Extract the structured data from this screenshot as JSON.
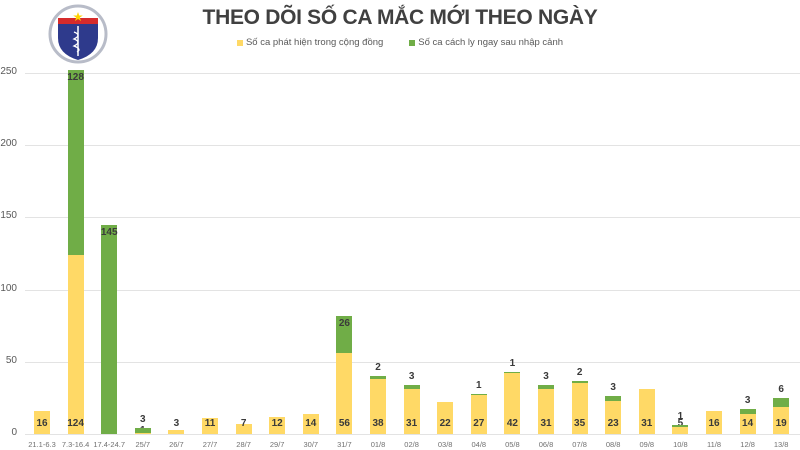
{
  "logo": {
    "top_text": "BỘ Y TẾ",
    "bottom_text": "MINISTRY OF HEALTH"
  },
  "chart_data": {
    "type": "bar",
    "stacked": true,
    "title": "THEO DÕI SỐ CA MẮC MỚI THEO NGÀY",
    "xlabel": "",
    "ylabel": "",
    "ylim": [
      0,
      250
    ],
    "yticks": [
      0,
      50,
      100,
      150,
      200,
      250
    ],
    "grid": true,
    "legend_position": "top",
    "categories": [
      "21.1-6.3",
      "7.3-16.4",
      "17.4-24.7",
      "25/7",
      "26/7",
      "27/7",
      "28/7",
      "29/7",
      "30/7",
      "31/7",
      "01/8",
      "02/8",
      "03/8",
      "04/8",
      "05/8",
      "06/8",
      "07/8",
      "08/8",
      "09/8",
      "10/8",
      "11/8",
      "12/8",
      "13/8"
    ],
    "series": [
      {
        "name": "Số ca phát hiện trong cộng đồng",
        "color": "#FFD966",
        "values": [
          16,
          124,
          0,
          1,
          3,
          11,
          7,
          12,
          14,
          56,
          38,
          31,
          22,
          27,
          42,
          31,
          35,
          23,
          31,
          5,
          16,
          14,
          19
        ]
      },
      {
        "name": "Số ca cách ly ngay sau nhập cảnh",
        "color": "#70AD47",
        "values": [
          0,
          128,
          145,
          3,
          0,
          0,
          0,
          0,
          0,
          26,
          2,
          3,
          0,
          1,
          1,
          3,
          2,
          3,
          0,
          1,
          0,
          3,
          6
        ]
      }
    ]
  }
}
